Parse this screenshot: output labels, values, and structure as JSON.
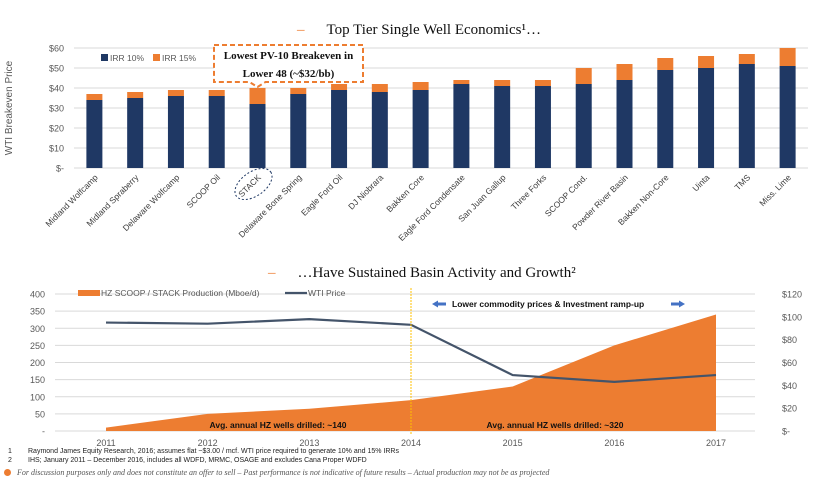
{
  "colors": {
    "navy": "#1f3864",
    "orange": "#ed7d31",
    "line": "#44546a",
    "grid": "#d9d9d9",
    "divider": "#ffc000",
    "arrow": "#4472c4"
  },
  "titles": {
    "top": "Top Tier Single Well Economics¹…",
    "bottom": "…Have Sustained Basin Activity and Growth²",
    "dash": "–"
  },
  "chart_data": [
    {
      "type": "bar",
      "stacked": true,
      "title": "Top Tier Single Well Economics¹…",
      "xlabel": "",
      "ylabel": "WTI Breakeven Price",
      "ylim": [
        0,
        60
      ],
      "yticks": [
        0,
        10,
        20,
        30,
        40,
        50,
        60
      ],
      "ytick_labels": [
        "$-",
        "$10",
        "$20",
        "$30",
        "$40",
        "$50",
        "$60"
      ],
      "grid": true,
      "legend": "top-left",
      "categories": [
        "Midland Wolfcamp",
        "Midland Spraberry",
        "Delaware Wolfcamp",
        "SCOOP Oil",
        "STACK",
        "Delaware Bone Spring",
        "Eagle Ford Oil",
        "DJ Niobrara",
        "Bakken Core",
        "Eagle Ford Condensate",
        "San Juan Gallup",
        "Three Forks",
        "SCOOP Cond.",
        "Powder River Basin",
        "Bakken Non-Core",
        "Uinta",
        "TMS",
        "Miss. Lime"
      ],
      "series": [
        {
          "name": "IRR 10%",
          "values": [
            34,
            35,
            36,
            36,
            32,
            37,
            39,
            38,
            39,
            42,
            41,
            41,
            42,
            44,
            49,
            50,
            52,
            51
          ]
        },
        {
          "name": "IRR 15%",
          "values": [
            3,
            3,
            3,
            3,
            8,
            3,
            3,
            4,
            4,
            2,
            3,
            3,
            8,
            8,
            6,
            6,
            5,
            9
          ]
        }
      ],
      "highlighted_category": "STACK",
      "annotation": {
        "line1": "Lowest PV-10 Breakeven in",
        "line2": "Lower 48 (~$32/bb)"
      }
    },
    {
      "type": "area",
      "title": "…Have Sustained Basin Activity and Growth²",
      "x": [
        "2011",
        "2012",
        "2013",
        "2014",
        "2015",
        "2016",
        "2017"
      ],
      "ylim": [
        0,
        400
      ],
      "yticks": [
        0,
        50,
        100,
        150,
        200,
        250,
        300,
        350,
        400
      ],
      "ytick_labels": [
        "-",
        "50",
        "100",
        "150",
        "200",
        "250",
        "300",
        "350",
        "400"
      ],
      "y2lim": [
        0,
        120
      ],
      "y2ticks": [
        0,
        20,
        40,
        60,
        80,
        100,
        120
      ],
      "y2tick_labels": [
        "$-",
        "$20",
        "$40",
        "$60",
        "$80",
        "$100",
        "$120"
      ],
      "grid": true,
      "legend": "top-left",
      "series": [
        {
          "name": "HZ SCOOP / STACK Production (Mboe/d)",
          "type": "area",
          "axis": "left",
          "values": [
            10,
            50,
            65,
            90,
            130,
            250,
            340
          ]
        },
        {
          "name": "WTI Price",
          "type": "line",
          "axis": "right",
          "values": [
            95,
            94,
            98,
            93,
            49,
            43,
            49
          ]
        }
      ],
      "divider_at": "2014",
      "annotations": {
        "arrow_label": "Lower commodity prices & Investment ramp-up",
        "left_wells": "Avg. annual HZ wells drilled: ~140",
        "right_wells": "Avg. annual HZ wells drilled: ~320"
      }
    }
  ],
  "footnotes": [
    {
      "num": "1",
      "text": "Raymond James Equity Research, 2016; assumes flat ~$3.00 / mcf. WTI price required to generate 10% and 15% IRRs"
    },
    {
      "num": "2",
      "text": "IHS; January 2011 – December 2016, includes all WDFD, MRMC, OSAGE and excludes Cana Proper WDFD"
    }
  ],
  "disclaimer": "For discussion purposes only and does not constitute an offer to sell – Past performance is not indicative of future results – Actual production may not be as projected"
}
